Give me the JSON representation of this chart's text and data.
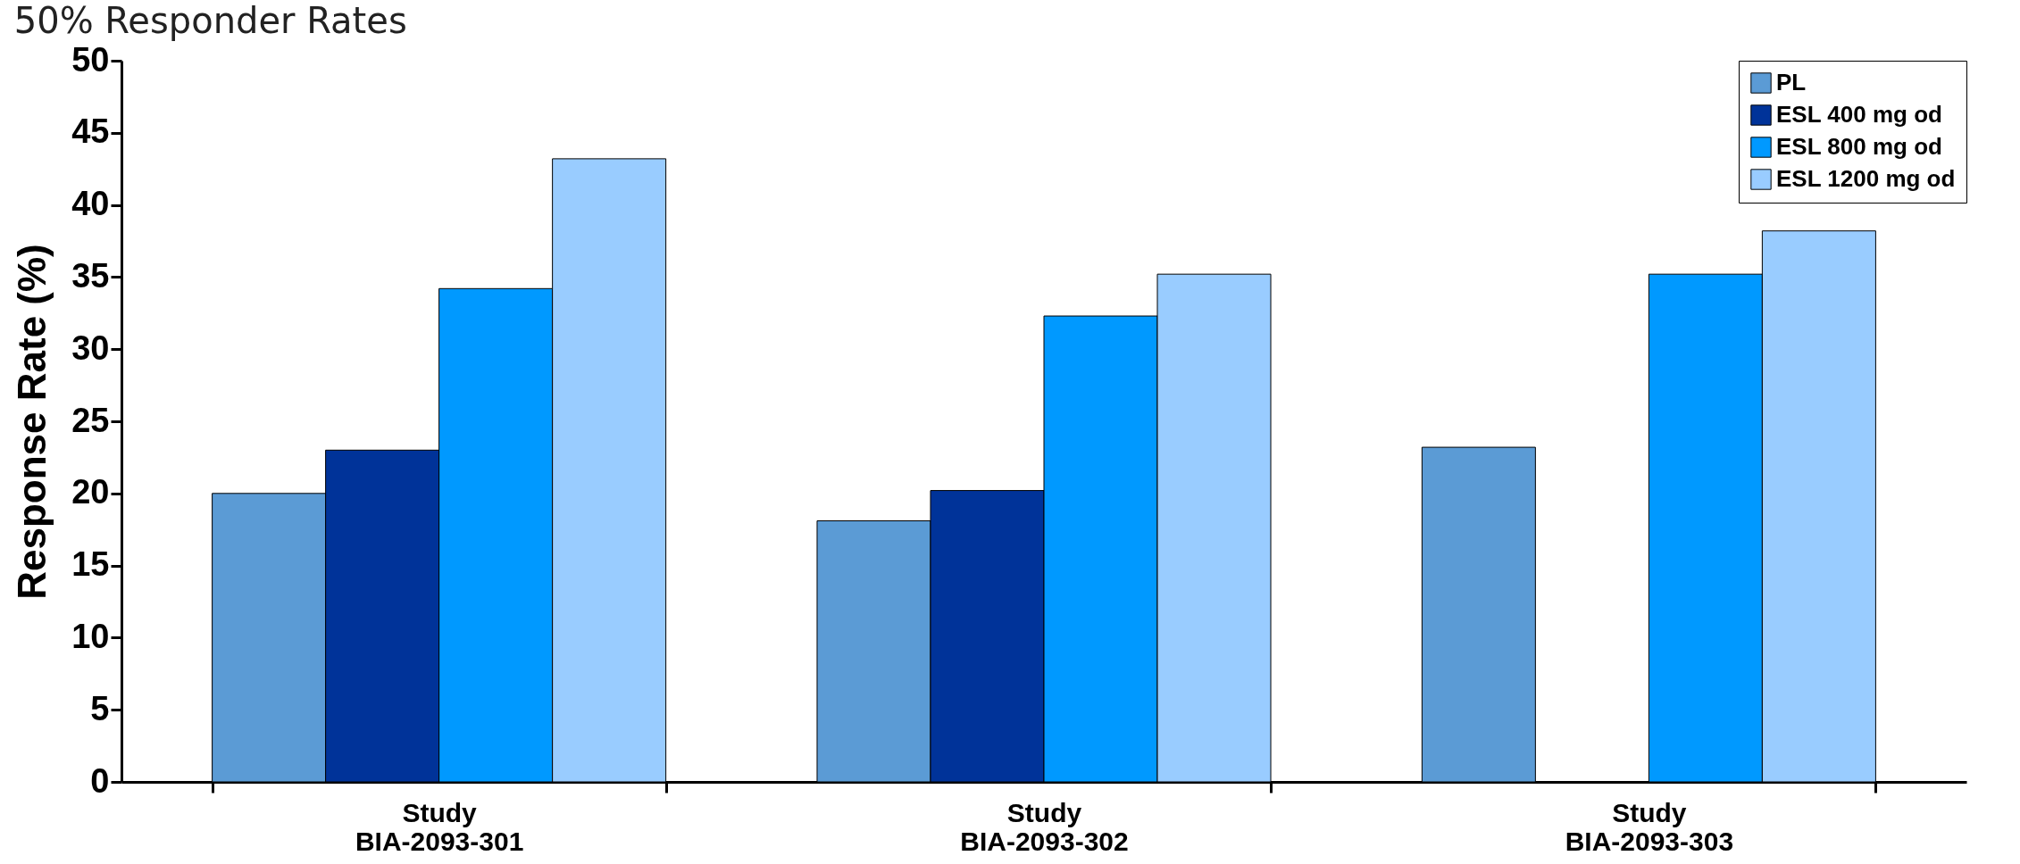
{
  "chart_data": {
    "type": "bar",
    "title": "50% Responder Rates",
    "ylabel": "Response Rate (%)",
    "categories": [
      "Study BIA-2093-301",
      "Study BIA-2093-302",
      "Study BIA-2093-303"
    ],
    "series": [
      {
        "name": "PL",
        "color": "#5b9bd5",
        "values": [
          20.0,
          18.1,
          23.2
        ]
      },
      {
        "name": "ESL 400 mg od",
        "color": "#003399",
        "values": [
          23.0,
          20.2,
          null
        ]
      },
      {
        "name": "ESL 800 mg od",
        "color": "#0099ff",
        "values": [
          34.2,
          32.3,
          35.2
        ]
      },
      {
        "name": "ESL 1200 mg od",
        "color": "#99ccff",
        "values": [
          43.2,
          35.2,
          38.2
        ]
      }
    ],
    "ylim": [
      0,
      50
    ],
    "yticks": [
      0,
      5,
      10,
      15,
      20,
      25,
      30,
      35,
      40,
      45,
      50
    ],
    "grid": false,
    "legend": "top right"
  }
}
